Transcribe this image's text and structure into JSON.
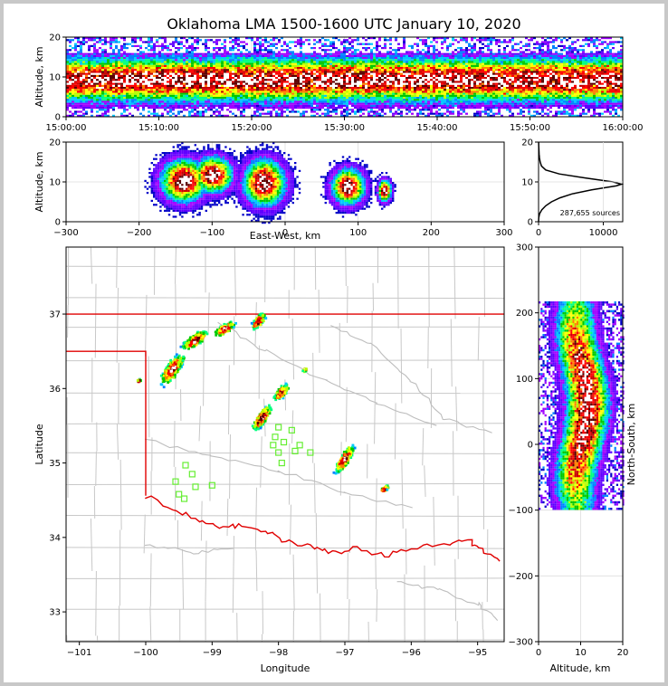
{
  "title": "Oklahoma LMA 1500-1600 UTC January 10, 2020",
  "colors": {
    "frame_bg": "#c8c8c8",
    "state_border": "#e00000",
    "county_lines": "#c8c8c8",
    "station_marker": "#66ee33",
    "density_scale": [
      "#0000c8",
      "#6000ff",
      "#a000ff",
      "#0080ff",
      "#00c8ff",
      "#00ff80",
      "#00c800",
      "#b4ff00",
      "#ffff00",
      "#ff8000",
      "#ff0000",
      "#c80000",
      "#5a0000",
      "#ffffff"
    ]
  },
  "chart_data": [
    {
      "id": "time-height",
      "type": "heatmap",
      "ylabel": "Altitude, km",
      "xlabel": "",
      "ylim": [
        0,
        20
      ],
      "yticks": [
        "0",
        "10",
        "20"
      ],
      "xticks": [
        "15:00:00",
        "15:10:00",
        "15:20:00",
        "15:30:00",
        "15:40:00",
        "15:50:00",
        "16:00:00"
      ],
      "core_altitude_km": 9.5,
      "core_spread_km": 3.5
    },
    {
      "id": "ew-height",
      "type": "heatmap",
      "xlabel": "East-West, km",
      "ylabel": "Altitude, km",
      "xlim": [
        -300,
        300
      ],
      "ylim": [
        0,
        20
      ],
      "xticks": [
        "−300",
        "−200",
        "−100",
        "0",
        "100",
        "200",
        "300"
      ],
      "yticks": [
        "0",
        "10",
        "20"
      ],
      "cells": [
        {
          "x_km": -140,
          "alt_km": 10.5,
          "x_half_km": 35,
          "alt_half_km": 6
        },
        {
          "x_km": -100,
          "alt_km": 12,
          "x_half_km": 30,
          "alt_half_km": 5
        },
        {
          "x_km": -30,
          "alt_km": 10,
          "x_half_km": 32,
          "alt_half_km": 6.5
        },
        {
          "x_km": 85,
          "alt_km": 9,
          "x_half_km": 25,
          "alt_half_km": 5
        },
        {
          "x_km": 135,
          "alt_km": 8,
          "x_half_km": 10,
          "alt_half_km": 3
        }
      ]
    },
    {
      "id": "altitude-histogram",
      "type": "line",
      "annotation": "287,655 sources",
      "xlim": [
        0,
        13000
      ],
      "ylim": [
        0,
        20
      ],
      "xticks": [
        "0",
        "10000"
      ],
      "yticks": [
        "0",
        "10",
        "20"
      ],
      "peak_altitude_km": 9.4,
      "peak_count": 12800,
      "altitude_km": [
        0,
        1,
        2,
        3,
        4,
        5,
        6,
        7,
        8,
        9,
        9.4,
        10,
        11,
        12,
        13,
        14,
        15,
        16,
        17,
        18,
        19,
        20
      ],
      "counts": [
        0,
        30,
        150,
        500,
        1100,
        2000,
        3300,
        5200,
        8200,
        12000,
        12800,
        11500,
        7200,
        3200,
        1100,
        450,
        250,
        140,
        80,
        50,
        30,
        20
      ]
    },
    {
      "id": "plan-view",
      "type": "heatmap",
      "xlabel": "Longitude",
      "ylabel": "Latitude",
      "xlim": [
        -101.2,
        -94.6
      ],
      "ylim": [
        32.6,
        37.9
      ],
      "xticks": [
        {
          "v": -101,
          "t": "−101"
        },
        {
          "v": -100,
          "t": "−100"
        },
        {
          "v": -99,
          "t": "−99"
        },
        {
          "v": -98,
          "t": "−98"
        },
        {
          "v": -97,
          "t": "−97"
        },
        {
          "v": -96,
          "t": "−96"
        },
        {
          "v": -95,
          "t": "−95"
        }
      ],
      "yticks": [
        {
          "v": 33,
          "t": "33"
        },
        {
          "v": 34,
          "t": "34"
        },
        {
          "v": 35,
          "t": "35"
        },
        {
          "v": 36,
          "t": "36"
        },
        {
          "v": 37,
          "t": "37"
        }
      ],
      "storm_cells": [
        {
          "lon": -99.6,
          "lat": 36.25,
          "len": 0.55,
          "wid": 0.18,
          "angle": 55
        },
        {
          "lon": -99.25,
          "lat": 36.65,
          "len": 0.45,
          "wid": 0.15,
          "angle": 35
        },
        {
          "lon": -98.8,
          "lat": 36.8,
          "len": 0.35,
          "wid": 0.12,
          "angle": 30
        },
        {
          "lon": -98.3,
          "lat": 36.9,
          "len": 0.3,
          "wid": 0.12,
          "angle": 50
        },
        {
          "lon": -98.25,
          "lat": 35.6,
          "len": 0.45,
          "wid": 0.13,
          "angle": 55
        },
        {
          "lon": -97.95,
          "lat": 35.95,
          "len": 0.3,
          "wid": 0.12,
          "angle": 50
        },
        {
          "lon": -97.0,
          "lat": 35.05,
          "len": 0.5,
          "wid": 0.13,
          "angle": 60
        },
        {
          "lon": -96.4,
          "lat": 34.65,
          "len": 0.15,
          "wid": 0.06,
          "angle": 35
        },
        {
          "lon": -97.6,
          "lat": 36.25,
          "len": 0.08,
          "wid": 0.04,
          "angle": 45
        },
        {
          "lon": -100.1,
          "lat": 36.1,
          "len": 0.07,
          "wid": 0.04,
          "angle": 45
        }
      ],
      "stations": [
        {
          "lon": -99.4,
          "lat": 34.97
        },
        {
          "lon": -99.3,
          "lat": 34.85
        },
        {
          "lon": -99.55,
          "lat": 34.75
        },
        {
          "lon": -99.25,
          "lat": 34.68
        },
        {
          "lon": -99.5,
          "lat": 34.58
        },
        {
          "lon": -99.42,
          "lat": 34.52
        },
        {
          "lon": -99.0,
          "lat": 34.7
        },
        {
          "lon": -98.0,
          "lat": 35.48
        },
        {
          "lon": -98.05,
          "lat": 35.35
        },
        {
          "lon": -98.08,
          "lat": 35.24
        },
        {
          "lon": -97.92,
          "lat": 35.28
        },
        {
          "lon": -97.8,
          "lat": 35.44
        },
        {
          "lon": -97.75,
          "lat": 35.16
        },
        {
          "lon": -97.68,
          "lat": 35.24
        },
        {
          "lon": -97.52,
          "lat": 35.14
        },
        {
          "lon": -98.0,
          "lat": 35.14
        },
        {
          "lon": -97.95,
          "lat": 35.0
        }
      ]
    },
    {
      "id": "ns-height",
      "type": "heatmap",
      "xlabel": "Altitude, km",
      "ylabel": "North-South, km",
      "xlim": [
        0,
        20
      ],
      "ylim": [
        -300,
        300
      ],
      "xticks": [
        "0",
        "10",
        "20"
      ],
      "yticks": [
        {
          "v": -300,
          "t": "−300"
        },
        {
          "v": -200,
          "t": "−200"
        },
        {
          "v": -100,
          "t": "−100"
        },
        {
          "v": 0,
          "t": "0"
        },
        {
          "v": 100,
          "t": "100"
        },
        {
          "v": 200,
          "t": "200"
        },
        {
          "v": 300,
          "t": "300"
        }
      ],
      "ns_extent_km": [
        -95,
        215
      ],
      "core_altitude_km": 10
    }
  ]
}
